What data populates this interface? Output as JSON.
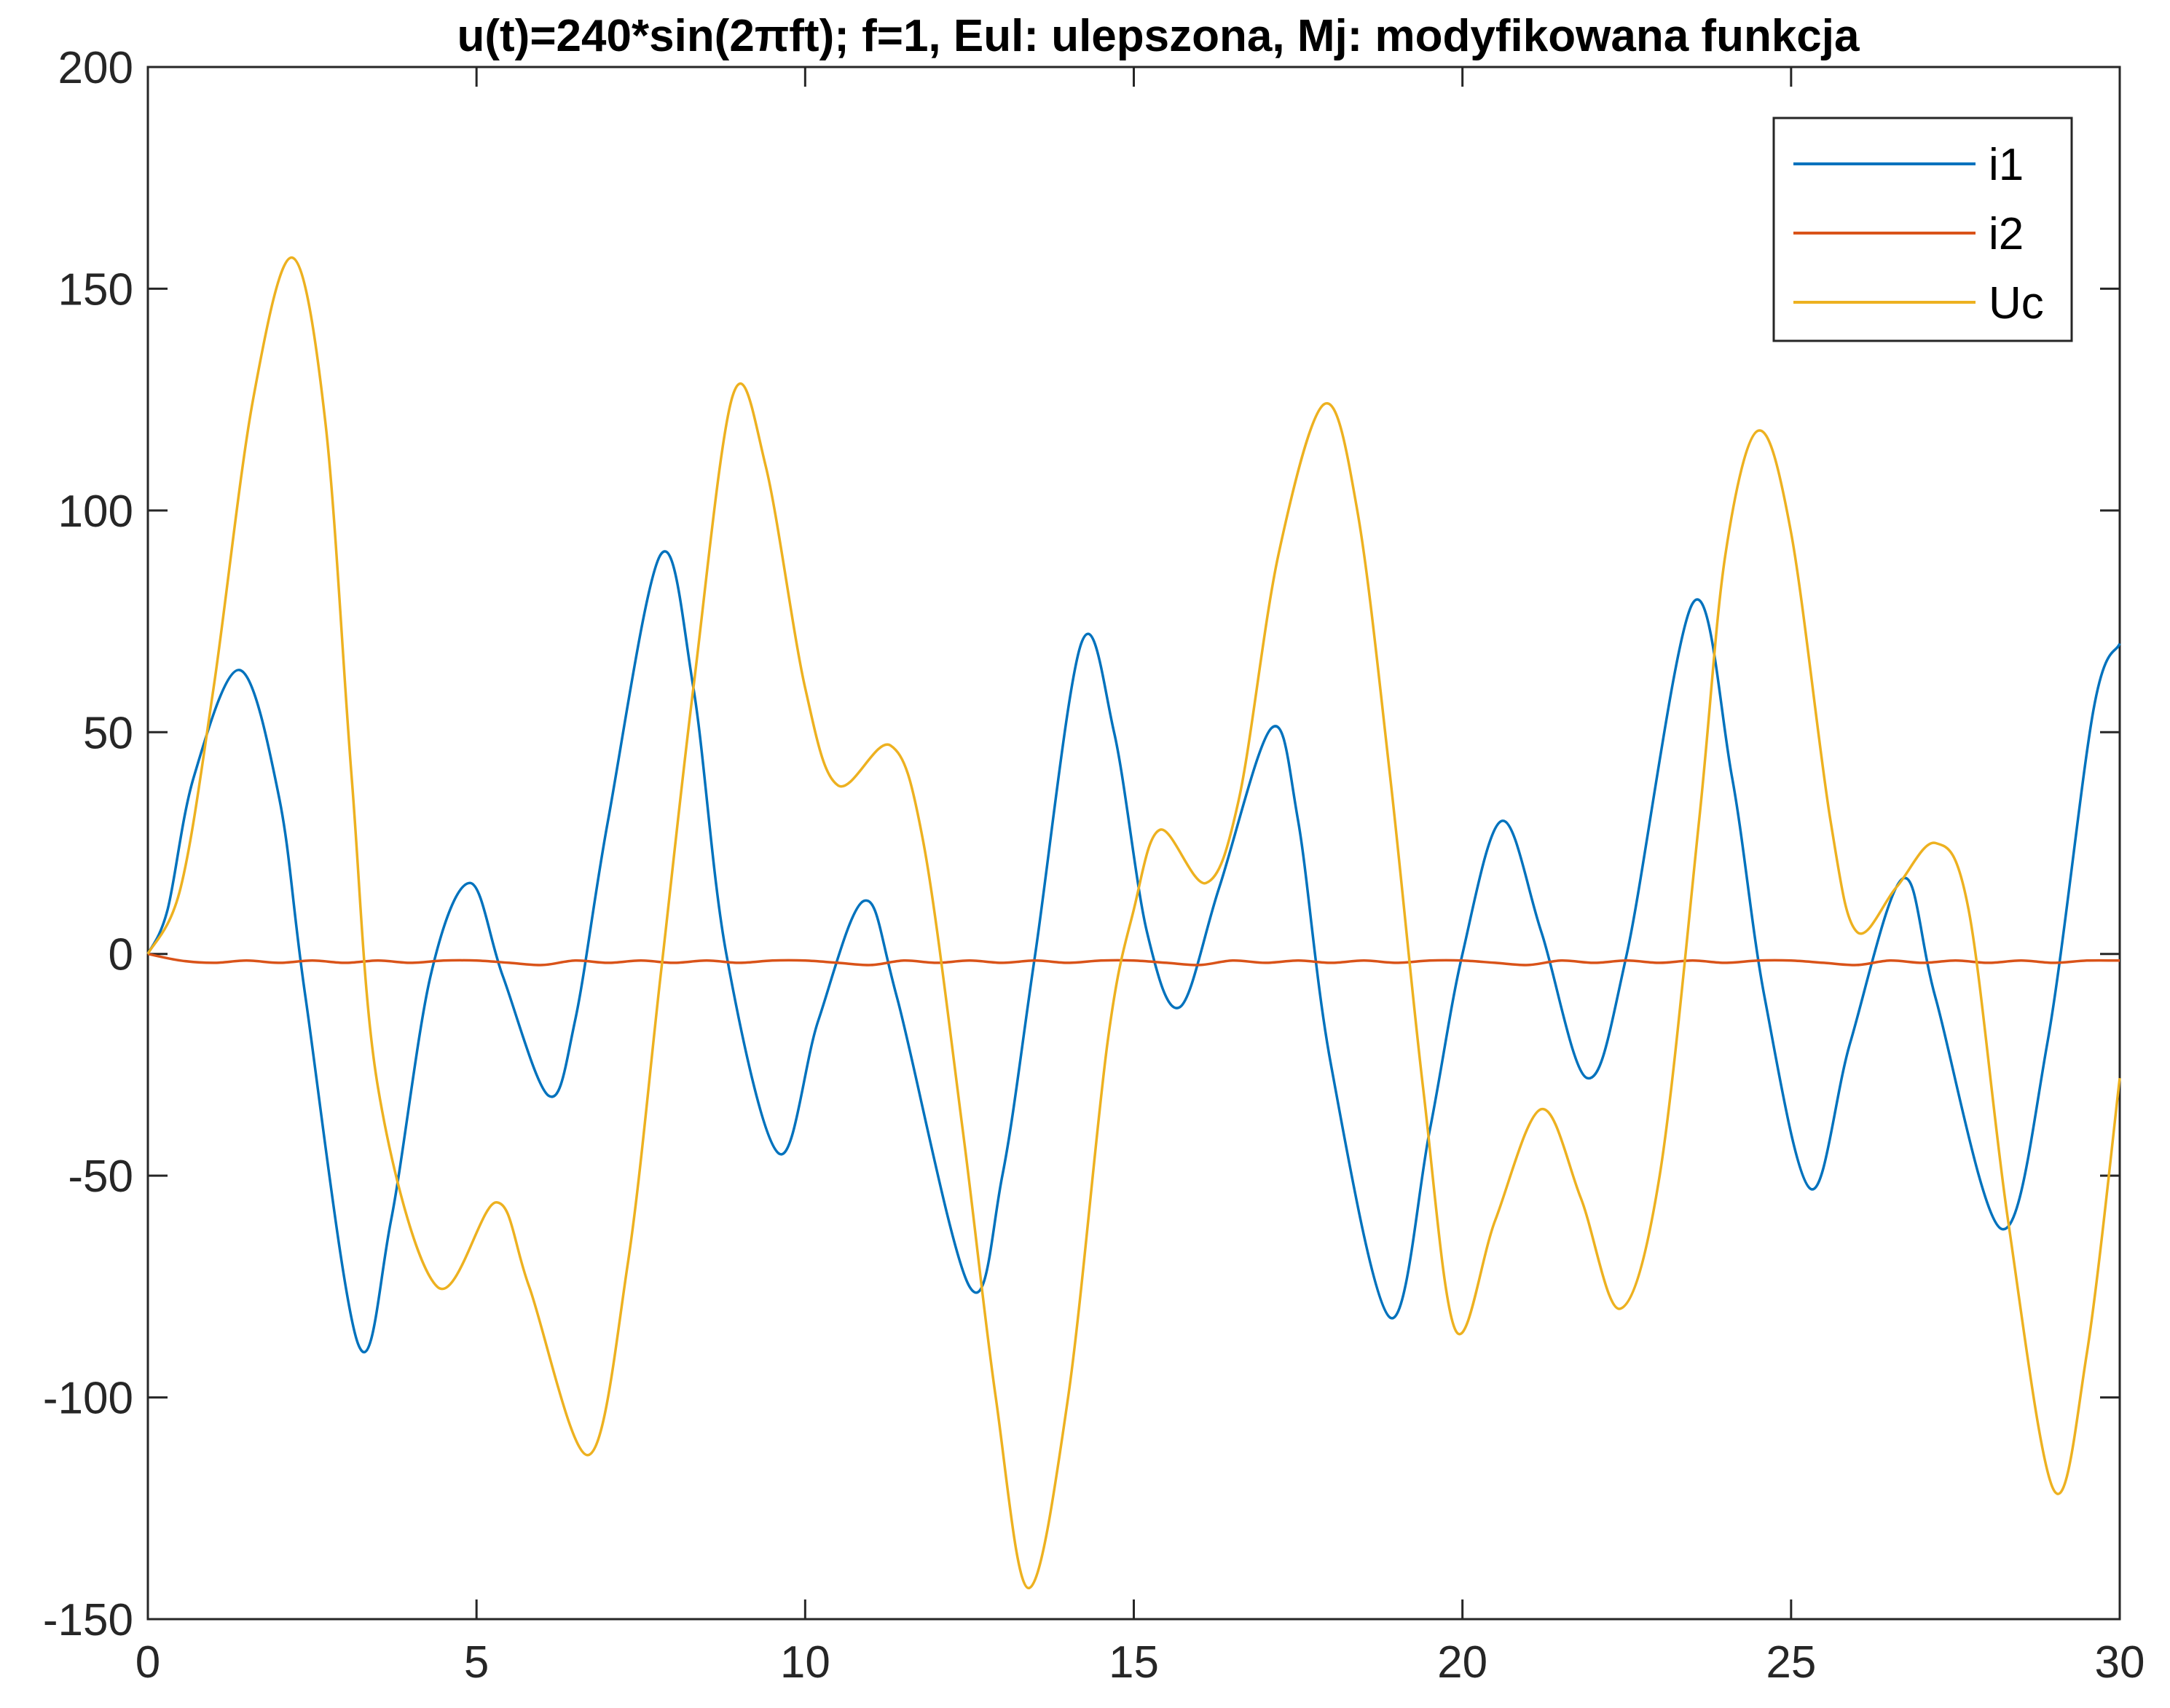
{
  "chart_data": {
    "type": "line",
    "title": "u(t)=240*sin(2πft); f=1, Eul: ulepszona, Mj: modyfikowana funkcja",
    "xlabel": "",
    "ylabel": "",
    "xlim": [
      0,
      30
    ],
    "ylim": [
      -150,
      200
    ],
    "xticks": [
      0,
      5,
      10,
      15,
      20,
      25,
      30
    ],
    "yticks": [
      -150,
      -100,
      -50,
      0,
      50,
      100,
      150,
      200
    ],
    "grid": false,
    "legend_position": "top-right",
    "series": [
      {
        "name": "i1",
        "color": "#0072BD",
        "points": [
          [
            0,
            0
          ],
          [
            0.3,
            10
          ],
          [
            0.7,
            40
          ],
          [
            1.4,
            64
          ],
          [
            2.0,
            35
          ],
          [
            2.4,
            -10
          ],
          [
            3.2,
            -88
          ],
          [
            3.7,
            -60
          ],
          [
            4.3,
            -5
          ],
          [
            4.9,
            16
          ],
          [
            5.4,
            -5
          ],
          [
            6.1,
            -32
          ],
          [
            6.5,
            -15
          ],
          [
            7.0,
            30
          ],
          [
            7.8,
            90
          ],
          [
            8.3,
            60
          ],
          [
            8.8,
            0
          ],
          [
            9.6,
            -45
          ],
          [
            10.2,
            -15
          ],
          [
            10.9,
            12
          ],
          [
            11.4,
            -10
          ],
          [
            12.5,
            -75
          ],
          [
            13.0,
            -50
          ],
          [
            13.5,
            0
          ],
          [
            14.2,
            70
          ],
          [
            14.7,
            50
          ],
          [
            15.2,
            5
          ],
          [
            15.7,
            -12
          ],
          [
            16.3,
            15
          ],
          [
            17.1,
            51
          ],
          [
            17.5,
            30
          ],
          [
            18.0,
            -25
          ],
          [
            18.9,
            -82
          ],
          [
            19.5,
            -40
          ],
          [
            20.0,
            0
          ],
          [
            20.6,
            30
          ],
          [
            21.2,
            5
          ],
          [
            21.9,
            -28
          ],
          [
            22.5,
            0
          ],
          [
            23.5,
            79
          ],
          [
            24.1,
            40
          ],
          [
            24.6,
            -10
          ],
          [
            25.3,
            -53
          ],
          [
            25.9,
            -20
          ],
          [
            26.7,
            17
          ],
          [
            27.2,
            -10
          ],
          [
            28.2,
            -62
          ],
          [
            28.9,
            -20
          ],
          [
            29.6,
            55
          ],
          [
            30,
            70
          ]
        ]
      },
      {
        "name": "i2",
        "color": "#D95319",
        "points": [
          [
            0,
            0
          ],
          [
            0.5,
            -1.5
          ],
          [
            1,
            -2
          ],
          [
            1.5,
            -1.5
          ],
          [
            2,
            -2
          ],
          [
            2.5,
            -1.5
          ],
          [
            3,
            -2
          ],
          [
            3.5,
            -1.5
          ],
          [
            4,
            -2
          ],
          [
            4.5,
            -1.5
          ],
          [
            5,
            -1.5
          ],
          [
            5.5,
            -2
          ],
          [
            6,
            -2.5
          ],
          [
            6.5,
            -1.5
          ],
          [
            7,
            -2
          ],
          [
            7.5,
            -1.5
          ],
          [
            8,
            -2
          ],
          [
            8.5,
            -1.5
          ],
          [
            9,
            -2
          ],
          [
            9.5,
            -1.5
          ],
          [
            10,
            -1.5
          ],
          [
            10.5,
            -2
          ],
          [
            11,
            -2.5
          ],
          [
            11.5,
            -1.5
          ],
          [
            12,
            -2
          ],
          [
            12.5,
            -1.5
          ],
          [
            13,
            -2
          ],
          [
            13.5,
            -1.5
          ],
          [
            14,
            -2
          ],
          [
            14.5,
            -1.5
          ],
          [
            15,
            -1.5
          ],
          [
            15.5,
            -2
          ],
          [
            16,
            -2.5
          ],
          [
            16.5,
            -1.5
          ],
          [
            17,
            -2
          ],
          [
            17.5,
            -1.5
          ],
          [
            18,
            -2
          ],
          [
            18.5,
            -1.5
          ],
          [
            19,
            -2
          ],
          [
            19.5,
            -1.5
          ],
          [
            20,
            -1.5
          ],
          [
            20.5,
            -2
          ],
          [
            21,
            -2.5
          ],
          [
            21.5,
            -1.5
          ],
          [
            22,
            -2
          ],
          [
            22.5,
            -1.5
          ],
          [
            23,
            -2
          ],
          [
            23.5,
            -1.5
          ],
          [
            24,
            -2
          ],
          [
            24.5,
            -1.5
          ],
          [
            25,
            -1.5
          ],
          [
            25.5,
            -2
          ],
          [
            26,
            -2.5
          ],
          [
            26.5,
            -1.5
          ],
          [
            27,
            -2
          ],
          [
            27.5,
            -1.5
          ],
          [
            28,
            -2
          ],
          [
            28.5,
            -1.5
          ],
          [
            29,
            -2
          ],
          [
            29.5,
            -1.5
          ],
          [
            30,
            -1.5
          ]
        ]
      },
      {
        "name": "Uc",
        "color": "#EDB120",
        "points": [
          [
            0,
            0
          ],
          [
            0.5,
            15
          ],
          [
            1.0,
            60
          ],
          [
            1.6,
            125
          ],
          [
            2.2,
            157
          ],
          [
            2.7,
            120
          ],
          [
            3.1,
            40
          ],
          [
            3.5,
            -30
          ],
          [
            4.4,
            -75
          ],
          [
            5.3,
            -56
          ],
          [
            5.8,
            -75
          ],
          [
            6.7,
            -113
          ],
          [
            7.3,
            -70
          ],
          [
            7.8,
            -5
          ],
          [
            8.3,
            60
          ],
          [
            8.9,
            126
          ],
          [
            9.4,
            110
          ],
          [
            10.0,
            60
          ],
          [
            10.5,
            38
          ],
          [
            11.3,
            47
          ],
          [
            11.8,
            25
          ],
          [
            12.4,
            -40
          ],
          [
            12.9,
            -100
          ],
          [
            13.4,
            -143
          ],
          [
            14.0,
            -100
          ],
          [
            14.6,
            -20
          ],
          [
            15.0,
            10
          ],
          [
            15.4,
            28
          ],
          [
            16.1,
            16
          ],
          [
            16.6,
            35
          ],
          [
            17.2,
            90
          ],
          [
            17.9,
            124
          ],
          [
            18.4,
            100
          ],
          [
            18.9,
            40
          ],
          [
            19.4,
            -30
          ],
          [
            19.9,
            -85
          ],
          [
            20.5,
            -60
          ],
          [
            21.2,
            -35
          ],
          [
            21.8,
            -55
          ],
          [
            22.4,
            -80
          ],
          [
            23.0,
            -50
          ],
          [
            23.6,
            30
          ],
          [
            24.0,
            90
          ],
          [
            24.5,
            118
          ],
          [
            25.0,
            95
          ],
          [
            25.6,
            30
          ],
          [
            26.0,
            5
          ],
          [
            26.6,
            15
          ],
          [
            27.2,
            25
          ],
          [
            27.7,
            10
          ],
          [
            28.3,
            -60
          ],
          [
            29.0,
            -121
          ],
          [
            29.5,
            -90
          ],
          [
            30,
            -28
          ]
        ]
      }
    ]
  }
}
